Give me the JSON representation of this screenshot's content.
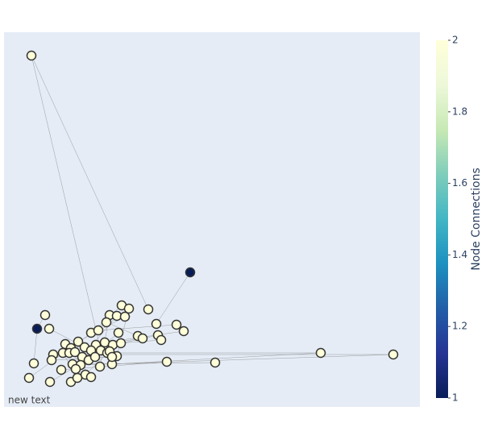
{
  "chart_data": {
    "type": "network",
    "annotation": "new text",
    "xlim": [
      0,
      516
    ],
    "ylim": [
      0,
      465
    ],
    "x": [
      34,
      231,
      41,
      179,
      51,
      56,
      146,
      155,
      131,
      140,
      150,
      127,
      189,
      214,
      223,
      142,
      166,
      172,
      191,
      195,
      108,
      117,
      92,
      76,
      125,
      114,
      135,
      145,
      100,
      83,
      61,
      73,
      81,
      88,
      108,
      120,
      128,
      140,
      131,
      97,
      105,
      113,
      393,
      483,
      37,
      59,
      85,
      95,
      202,
      262,
      134,
      119,
      71,
      89,
      101,
      108,
      31,
      57,
      83,
      91,
      134
    ],
    "y": [
      436,
      167,
      97,
      121,
      114,
      97,
      126,
      122,
      114,
      113,
      112,
      105,
      103,
      102,
      94,
      92,
      88,
      85,
      89,
      83,
      92,
      95,
      81,
      78,
      80,
      77,
      77,
      79,
      74,
      73,
      65,
      67,
      67,
      68,
      70,
      70,
      67,
      63,
      69,
      62,
      58,
      62,
      67,
      65,
      54,
      58,
      53,
      52,
      56,
      55,
      53,
      50,
      46,
      47,
      40,
      37,
      36,
      31,
      31,
      36,
      62
    ],
    "values": [
      2,
      1,
      1,
      2,
      2,
      2,
      2,
      2,
      2,
      2,
      2,
      2,
      2,
      2,
      2,
      2,
      2,
      2,
      2,
      2,
      2,
      2,
      2,
      2,
      2,
      2,
      2,
      2,
      2,
      2,
      2,
      2,
      2,
      2,
      2,
      2,
      2,
      2,
      2,
      2,
      2,
      2,
      2,
      2,
      2,
      2,
      2,
      2,
      2,
      2,
      2,
      2,
      2,
      2,
      2,
      2,
      2,
      2,
      2,
      2,
      2
    ],
    "edges": [
      [
        0,
        3
      ],
      [
        0,
        35
      ],
      [
        1,
        12
      ],
      [
        2,
        4
      ],
      [
        2,
        44
      ],
      [
        42,
        36
      ],
      [
        43,
        30
      ],
      [
        43,
        47
      ],
      [
        42,
        50
      ],
      [
        49,
        46
      ],
      [
        48,
        52
      ],
      [
        6,
        20
      ],
      [
        7,
        37
      ],
      [
        11,
        16
      ],
      [
        13,
        21
      ],
      [
        14,
        24
      ],
      [
        18,
        27
      ],
      [
        19,
        25
      ],
      [
        5,
        34
      ],
      [
        8,
        51
      ],
      [
        9,
        39
      ],
      [
        10,
        22
      ],
      [
        15,
        53
      ],
      [
        17,
        29
      ],
      [
        23,
        55
      ],
      [
        26,
        57
      ],
      [
        28,
        58
      ],
      [
        31,
        59
      ],
      [
        32,
        40
      ],
      [
        33,
        41
      ],
      [
        38,
        54
      ],
      [
        45,
        60
      ],
      [
        56,
        11
      ]
    ],
    "colorbar": {
      "title": "Node Connections",
      "lim": [
        1,
        2
      ],
      "ticks": [
        1,
        1.2,
        1.4,
        1.6,
        1.8,
        2
      ],
      "colorscale": [
        [
          0,
          "#081d58"
        ],
        [
          0.125,
          "#253494"
        ],
        [
          0.25,
          "#225ea8"
        ],
        [
          0.375,
          "#1d91c0"
        ],
        [
          0.5,
          "#41b6c4"
        ],
        [
          0.625,
          "#7fcdbb"
        ],
        [
          0.75,
          "#c7e9b4"
        ],
        [
          0.875,
          "#edf8d9"
        ],
        [
          1,
          "#ffffd9"
        ]
      ]
    }
  }
}
